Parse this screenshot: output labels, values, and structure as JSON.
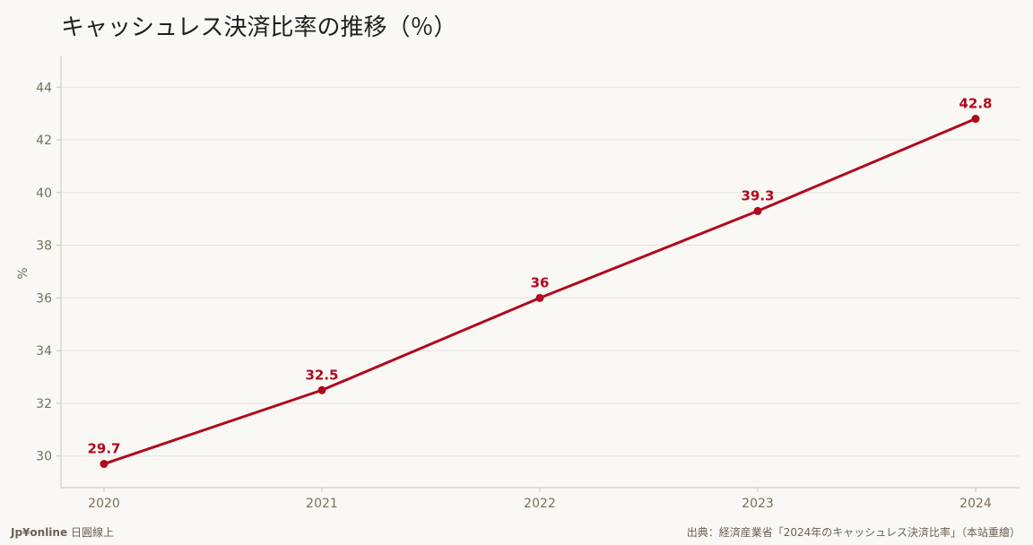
{
  "title": "キャッシュレス決済比率の推移（％）",
  "footer": {
    "brand": "Jp¥online",
    "brand_suffix": "日圓線上",
    "source": "出典：経済産業省「2024年のキャッシュレス決済比率」（本站重繪）"
  },
  "colors": {
    "line": "#b0091e",
    "axis_text": "#7a6e5a",
    "grid": "#e6e2da",
    "background": "#faf8f5"
  },
  "chart_data": {
    "type": "line",
    "categories": [
      "2020",
      "2021",
      "2022",
      "2023",
      "2024"
    ],
    "series": [
      {
        "values": [
          29.7,
          32.5,
          36,
          39.3,
          42.8
        ]
      }
    ],
    "data_labels": [
      "29.7",
      "32.5",
      "36",
      "39.3",
      "42.8"
    ],
    "ylabel": "%",
    "ylim": [
      28.8,
      45.2
    ],
    "yticks": [
      30,
      32,
      34,
      36,
      38,
      40,
      42,
      44
    ],
    "grid": true,
    "legend": "none"
  }
}
